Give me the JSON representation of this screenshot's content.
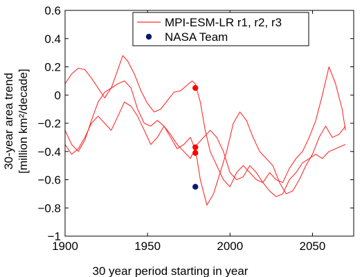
{
  "chart_data": {
    "type": "line",
    "xlabel": "30 year period starting in year",
    "ylabel_line1": "30-year area trend",
    "ylabel_line2": "[million km²/decade]",
    "xlim": [
      1900,
      2075
    ],
    "ylim": [
      -1,
      0.6
    ],
    "xticks": [
      1900,
      1950,
      2000,
      2050
    ],
    "yticks": [
      -1,
      -0.8,
      -0.6,
      -0.4,
      -0.2,
      0,
      0.2,
      0.4,
      0.6
    ],
    "ytick_labels": [
      "−1",
      "−0.8",
      "−0.6",
      "−0.4",
      "−0.2",
      "0",
      "0.2",
      "0.4",
      "0.6"
    ],
    "grid": false,
    "legend_position": "top-right",
    "legend_entries": [
      "MPI-ESM-LR r1, r2, r3",
      "NASA Team"
    ],
    "colors": {
      "model": "#ff2a2a",
      "model_points": "#ff0000",
      "nasa": "#0a1a6e"
    },
    "series": [
      {
        "x": [
          1900,
          1904,
          1908,
          1912,
          1916,
          1920,
          1924,
          1928,
          1932,
          1935,
          1938,
          1942,
          1946,
          1950,
          1954,
          1958,
          1962,
          1966,
          1970,
          1974,
          1977,
          1979,
          1982,
          1985,
          1988,
          1992,
          1996,
          2000,
          2004,
          2008,
          2012,
          2016,
          2020,
          2024,
          2028,
          2032,
          2036,
          2040,
          2044,
          2048,
          2052,
          2056,
          2060,
          2064,
          2068,
          2070
        ],
        "y": [
          0.08,
          0.15,
          0.19,
          0.18,
          0.12,
          0.05,
          -0.02,
          0.05,
          0.18,
          0.28,
          0.24,
          0.15,
          0.03,
          -0.06,
          -0.12,
          -0.1,
          -0.04,
          0.02,
          0.03,
          0.07,
          0.1,
          0.08,
          -0.05,
          -0.25,
          -0.4,
          -0.5,
          -0.6,
          -0.65,
          -0.55,
          -0.5,
          -0.55,
          -0.6,
          -0.62,
          -0.55,
          -0.6,
          -0.62,
          -0.52,
          -0.45,
          -0.4,
          -0.3,
          -0.18,
          0.0,
          0.2,
          0.08,
          -0.1,
          -0.25
        ]
      },
      {
        "x": [
          1900,
          1904,
          1908,
          1912,
          1916,
          1920,
          1924,
          1928,
          1932,
          1936,
          1940,
          1944,
          1948,
          1952,
          1956,
          1960,
          1964,
          1968,
          1972,
          1976,
          1978,
          1980,
          1982,
          1986,
          1990,
          1994,
          1998,
          2002,
          2006,
          2010,
          2014,
          2018,
          2022,
          2026,
          2030,
          2034,
          2038,
          2042,
          2046,
          2050,
          2054,
          2058,
          2062,
          2066,
          2070
        ],
        "y": [
          -0.25,
          -0.35,
          -0.4,
          -0.32,
          -0.18,
          -0.05,
          0.02,
          0.05,
          0.08,
          0.1,
          0.05,
          -0.1,
          -0.2,
          -0.22,
          -0.18,
          -0.22,
          -0.3,
          -0.38,
          -0.35,
          -0.3,
          -0.36,
          -0.45,
          -0.6,
          -0.78,
          -0.7,
          -0.55,
          -0.4,
          -0.2,
          -0.12,
          -0.18,
          -0.3,
          -0.4,
          -0.45,
          -0.5,
          -0.62,
          -0.7,
          -0.68,
          -0.6,
          -0.5,
          -0.42,
          -0.3,
          -0.22,
          -0.3,
          -0.28,
          -0.22
        ]
      },
      {
        "x": [
          1900,
          1904,
          1908,
          1912,
          1916,
          1920,
          1924,
          1928,
          1932,
          1936,
          1940,
          1944,
          1948,
          1952,
          1956,
          1960,
          1964,
          1968,
          1972,
          1976,
          1978,
          1980,
          1984,
          1988,
          1992,
          1996,
          2000,
          2004,
          2008,
          2012,
          2016,
          2020,
          2024,
          2028,
          2032,
          2036,
          2040,
          2044,
          2048,
          2052,
          2056,
          2060,
          2064,
          2068,
          2070
        ],
        "y": [
          -0.35,
          -0.42,
          -0.38,
          -0.3,
          -0.2,
          -0.15,
          -0.2,
          -0.25,
          -0.15,
          -0.05,
          -0.08,
          -0.15,
          -0.25,
          -0.35,
          -0.3,
          -0.22,
          -0.28,
          -0.35,
          -0.4,
          -0.45,
          -0.4,
          -0.35,
          -0.3,
          -0.25,
          -0.3,
          -0.4,
          -0.55,
          -0.6,
          -0.58,
          -0.5,
          -0.55,
          -0.62,
          -0.68,
          -0.72,
          -0.7,
          -0.6,
          -0.55,
          -0.48,
          -0.45,
          -0.42,
          -0.45,
          -0.4,
          -0.38,
          -0.36,
          -0.35
        ]
      }
    ],
    "model_points": [
      {
        "x": 1979,
        "y": 0.05
      },
      {
        "x": 1979,
        "y": -0.37
      },
      {
        "x": 1979,
        "y": -0.41
      }
    ],
    "nasa_points": [
      {
        "x": 1979,
        "y": -0.65
      }
    ]
  }
}
